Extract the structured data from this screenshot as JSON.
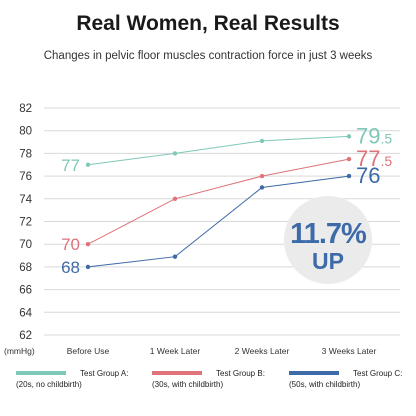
{
  "title": "Real Women, Real Results",
  "subtitle": "Changes in pelvic floor muscles contraction force in just 3 weeks",
  "colors": {
    "A": "#7fc8b8",
    "B": "#e0727a",
    "C": "#3d6aa8",
    "grid": "#d9d9d9",
    "badge_bg": "#ebebeb",
    "badge_text": "#3d6aa8"
  },
  "badge": {
    "line1": "11.7%",
    "line2": "UP"
  },
  "chart_data": {
    "type": "line",
    "title": "Real Women, Real Results",
    "subtitle": "Changes in pelvic floor muscles contraction force in just 3 weeks",
    "ylabel": "(mmHg)",
    "ylim": [
      62,
      82
    ],
    "yticks": [
      62,
      64,
      66,
      68,
      70,
      72,
      74,
      76,
      78,
      80,
      82
    ],
    "categories": [
      "Before Use",
      "1 Week Later",
      "2 Weeks Later",
      "3 Weeks Later"
    ],
    "grid": true,
    "legend_position": "bottom",
    "series": [
      {
        "key": "A",
        "name": "Test Group A:",
        "desc": "(20s, no childbirth)",
        "values": [
          77,
          78,
          79.1,
          79.5
        ],
        "start_label": "77",
        "end_label_main": "79",
        "end_label_sub": ".5"
      },
      {
        "key": "B",
        "name": "Test Group B:",
        "desc": "(30s, with childbirth)",
        "values": [
          70,
          74,
          76,
          77.5
        ],
        "start_label": "70",
        "end_label_main": "77",
        "end_label_sub": ".5"
      },
      {
        "key": "C",
        "name": "Test Group C:",
        "desc": "(50s, with childbirth)",
        "values": [
          68,
          68.9,
          75,
          76
        ],
        "start_label": "68",
        "end_label_main": "76",
        "end_label_sub": ""
      }
    ]
  }
}
